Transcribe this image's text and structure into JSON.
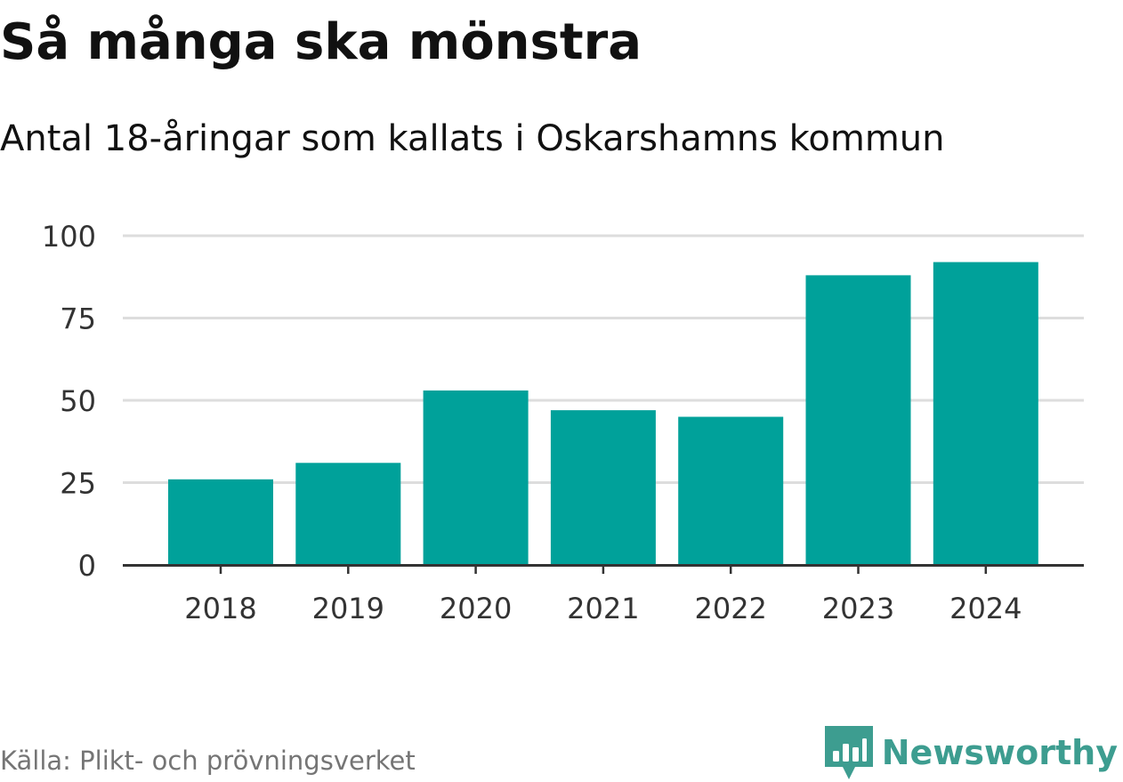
{
  "header": {
    "title": "Så många ska mönstra",
    "subtitle": "Antal 18-åringar som kallats i Oskarshamns kommun"
  },
  "footer": {
    "source": "Källa: Plikt- och prövningsverket",
    "brand": "Newsworthy",
    "brand_icon": "newsworthy-logo-icon"
  },
  "colors": {
    "bar": "#00a19a",
    "grid": "#dddddd",
    "axis": "#333333",
    "tick_text": "#333333",
    "brand": "#3d9d90"
  },
  "chart_data": {
    "type": "bar",
    "title": "Så många ska mönstra",
    "subtitle": "Antal 18-åringar som kallats i Oskarshamns kommun",
    "categories": [
      "2018",
      "2019",
      "2020",
      "2021",
      "2022",
      "2023",
      "2024"
    ],
    "values": [
      26,
      31,
      53,
      47,
      45,
      88,
      92
    ],
    "ylim": [
      0,
      100
    ],
    "yticks": [
      0,
      25,
      50,
      75,
      100
    ],
    "xlabel": "",
    "ylabel": "",
    "grid": true,
    "legend": "none"
  }
}
